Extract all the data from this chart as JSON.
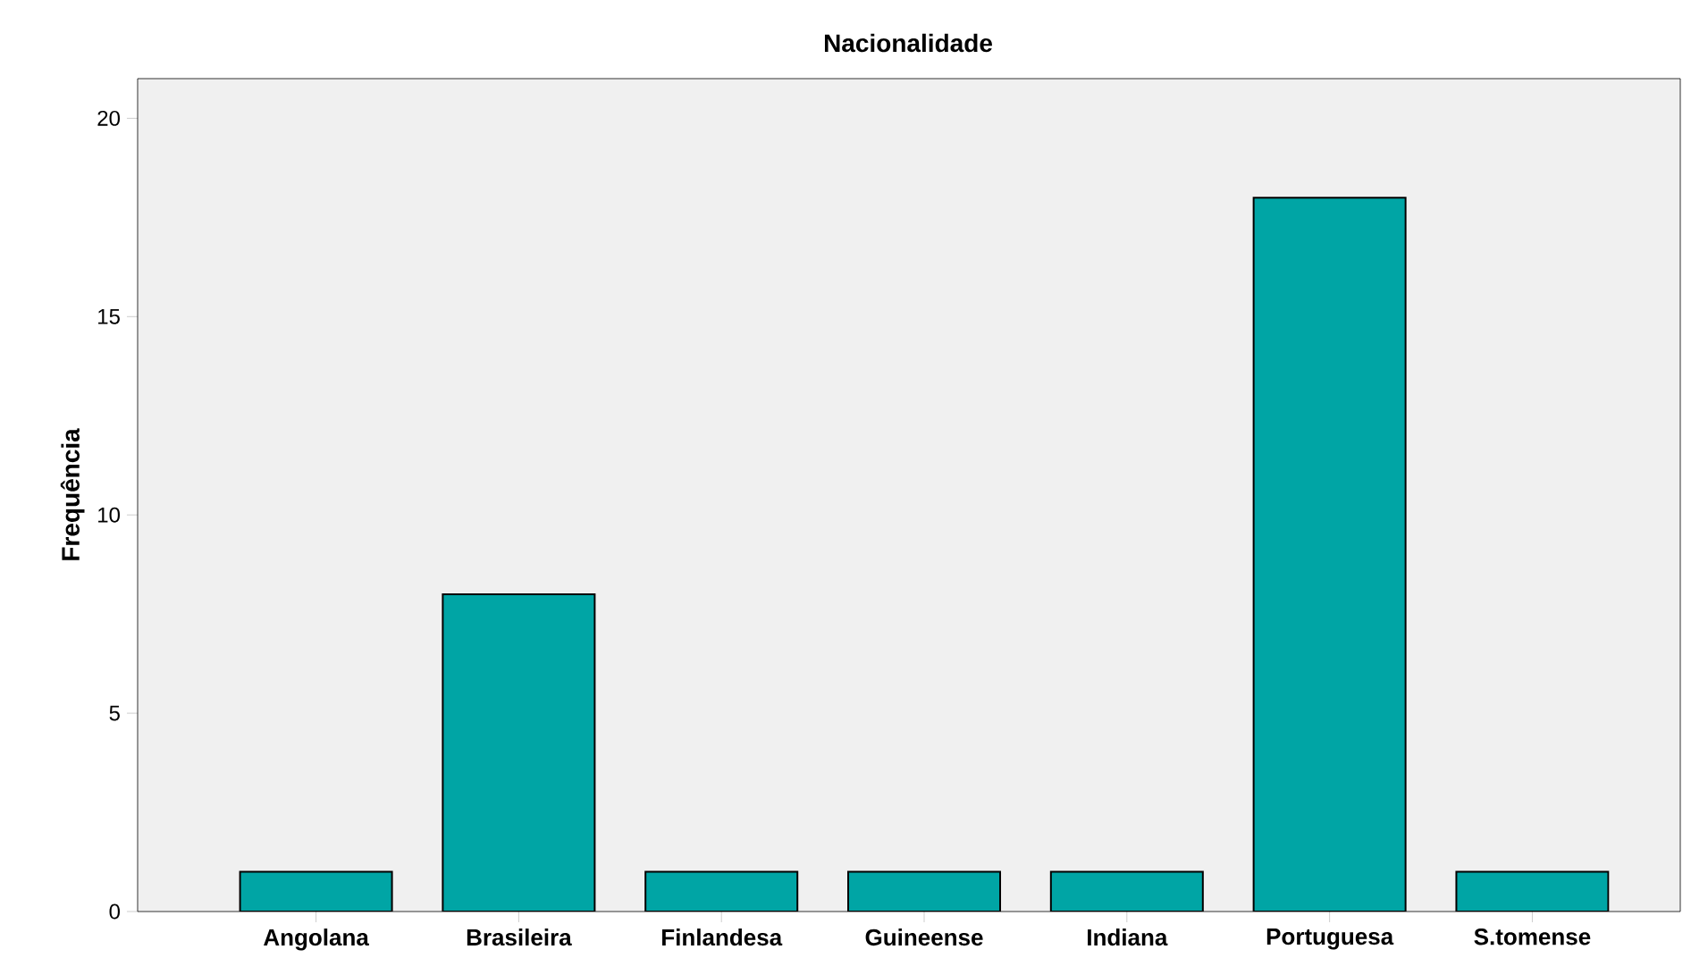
{
  "chart_data": {
    "type": "bar",
    "title": "Nacionalidade",
    "ylabel": "Frequência",
    "categories": [
      "Angolana",
      "Brasileira",
      "Finlandesa",
      "Guineense",
      "Indiana",
      "Portuguesa",
      "S.tomense"
    ],
    "values": [
      1,
      8,
      1,
      1,
      1,
      18,
      1
    ],
    "color": "#00a5a5",
    "ylim": [
      0,
      21
    ],
    "yticks": [
      0,
      5,
      10,
      15,
      20
    ]
  }
}
